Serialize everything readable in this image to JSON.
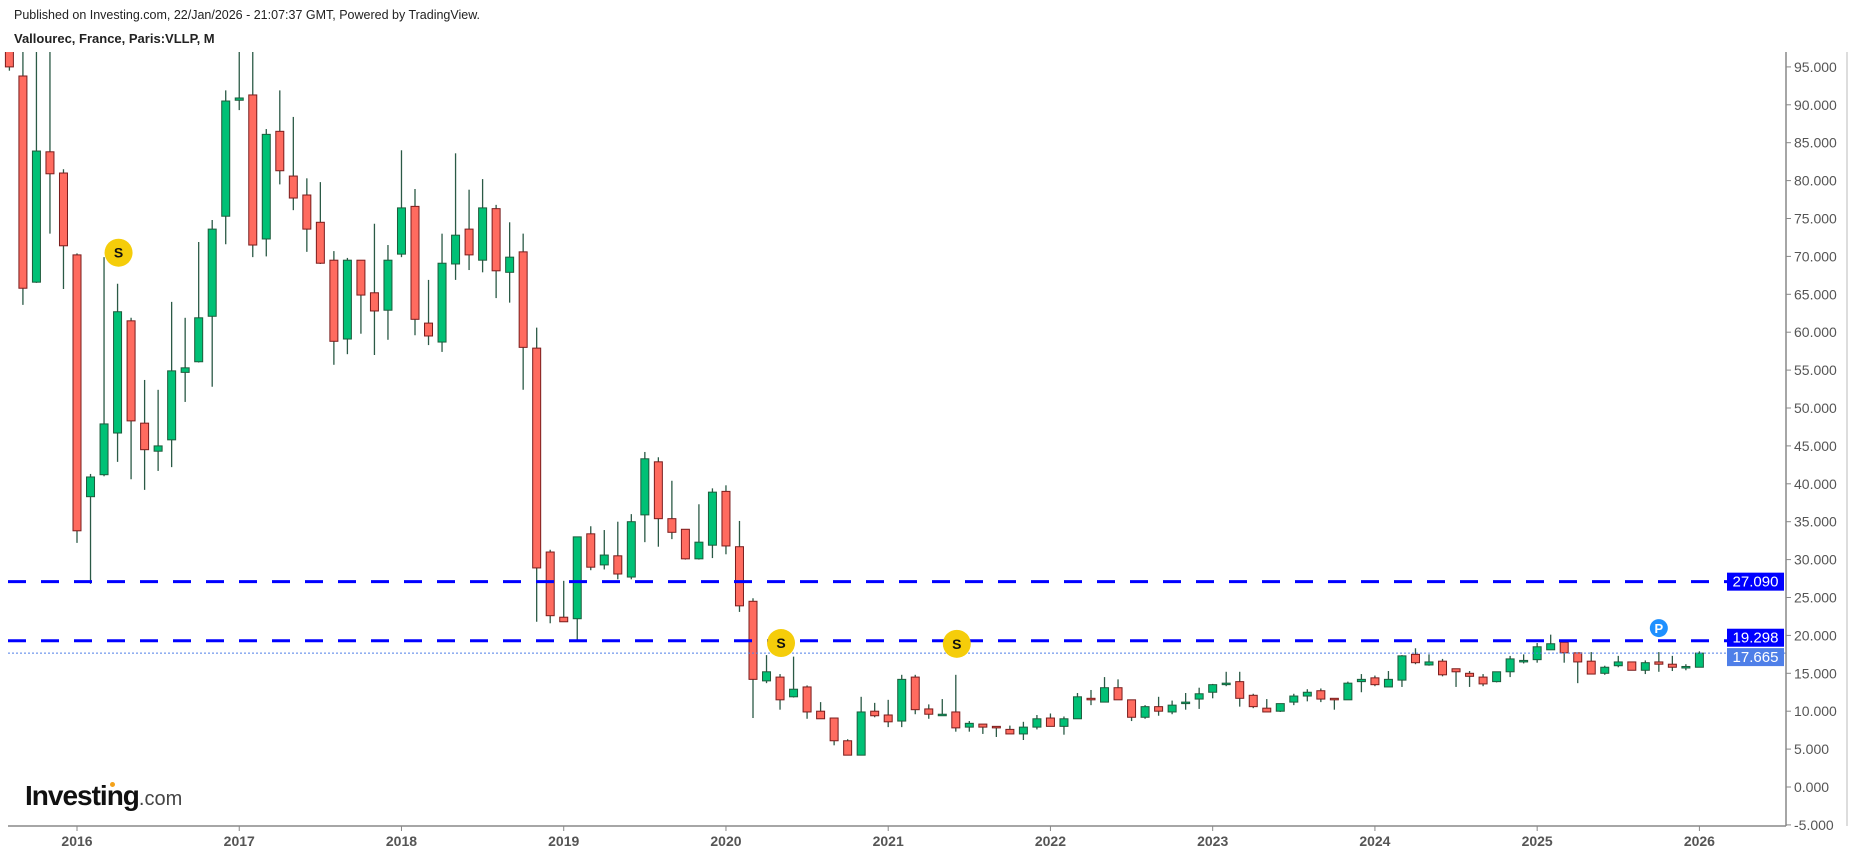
{
  "header": {
    "published": "Published on Investing.com, 22/Jan/2026 - 21:07:37 GMT, Powered by TradingView.",
    "title": "Vallourec, France, Paris:VLLP, M"
  },
  "logo": {
    "main": "Investing",
    "suffix": ".com",
    "accent_color": "#f4a21b"
  },
  "chart_data": {
    "type": "candlestick",
    "interval": "monthly",
    "title": "Vallourec, France, Paris:VLLP, M",
    "ylim": [
      -5,
      95
    ],
    "y_ticks": [
      "95.000",
      "90.000",
      "85.000",
      "80.000",
      "75.000",
      "70.000",
      "65.000",
      "60.000",
      "55.000",
      "50.000",
      "45.000",
      "40.000",
      "35.000",
      "30.000",
      "25.000",
      "20.000",
      "15.000",
      "10.000",
      "5.000",
      "0.000",
      "-5.000"
    ],
    "x_ticks": [
      "2016",
      "2017",
      "2018",
      "2019",
      "2020",
      "2021",
      "2022",
      "2023",
      "2024",
      "2025",
      "2026"
    ],
    "axis_position": "right",
    "grid": false,
    "colors": {
      "up": "#00c176",
      "up_border": "#1d5c3c",
      "down": "#ff6b5f",
      "down_border": "#7a1d1d",
      "wick": "#2b5a46",
      "hline": "#0000ff",
      "last_price": "#4f7fe8"
    },
    "candles_fields": [
      "month",
      "open",
      "high",
      "low",
      "close"
    ],
    "candles": [
      [
        "2015-08",
        100,
        102,
        94.5,
        95
      ],
      [
        "2015-09",
        93.8,
        97,
        63.6,
        65.8
      ],
      [
        "2015-10",
        66.6,
        98,
        66.5,
        83.9
      ],
      [
        "2015-11",
        83.8,
        98,
        73,
        80.9
      ],
      [
        "2015-12",
        81,
        81.5,
        65.7,
        71.4
      ],
      [
        "2016-01",
        70.2,
        70.4,
        32.2,
        33.8
      ],
      [
        "2016-02",
        38.3,
        41.3,
        26.8,
        40.9
      ],
      [
        "2016-03",
        41.2,
        69.9,
        41,
        47.9
      ],
      [
        "2016-04",
        46.7,
        66.4,
        42.9,
        62.7
      ],
      [
        "2016-05",
        61.5,
        61.9,
        40.6,
        48.3
      ],
      [
        "2016-06",
        48,
        53.7,
        39.2,
        44.5
      ],
      [
        "2016-07",
        44.3,
        52.4,
        41.7,
        45
      ],
      [
        "2016-08",
        45.8,
        64,
        42.2,
        54.9
      ],
      [
        "2016-09",
        54.7,
        61.9,
        50.8,
        55.3
      ],
      [
        "2016-10",
        56.1,
        71.9,
        56,
        61.9
      ],
      [
        "2016-11",
        62.1,
        74.8,
        52.8,
        73.6
      ],
      [
        "2016-12",
        75.3,
        91.9,
        71.6,
        90.5
      ],
      [
        "2017-01",
        90.6,
        98,
        89.3,
        90.9
      ],
      [
        "2017-02",
        91.3,
        98,
        69.9,
        71.5
      ],
      [
        "2017-03",
        72.3,
        86.8,
        70,
        86.1
      ],
      [
        "2017-04",
        86.5,
        91.9,
        79.5,
        81.3
      ],
      [
        "2017-05",
        80.6,
        88.4,
        76.1,
        77.7
      ],
      [
        "2017-06",
        78.1,
        80.3,
        70.6,
        73.6
      ],
      [
        "2017-07",
        74.5,
        79.8,
        69,
        69.1
      ],
      [
        "2017-08",
        69.5,
        70.7,
        55.7,
        58.8
      ],
      [
        "2017-09",
        59.1,
        69.8,
        57.1,
        69.5
      ],
      [
        "2017-10",
        69.5,
        69.5,
        59.8,
        64.9
      ],
      [
        "2017-11",
        65.2,
        74.3,
        57,
        62.8
      ],
      [
        "2017-12",
        62.9,
        71.5,
        59,
        69.5
      ],
      [
        "2018-01",
        70.3,
        84,
        69.9,
        76.4
      ],
      [
        "2018-02",
        76.6,
        78.9,
        59.6,
        61.7
      ],
      [
        "2018-03",
        61.2,
        66.9,
        58.3,
        59.5
      ],
      [
        "2018-04",
        58.7,
        73,
        57.4,
        69.1
      ],
      [
        "2018-05",
        69,
        83.6,
        66.9,
        72.8
      ],
      [
        "2018-06",
        73.6,
        78.8,
        68.2,
        70.2
      ],
      [
        "2018-07",
        69.5,
        80.2,
        67.9,
        76.4
      ],
      [
        "2018-08",
        76.3,
        76.8,
        64.5,
        68.1
      ],
      [
        "2018-09",
        67.9,
        74.5,
        63.9,
        69.9
      ],
      [
        "2018-10",
        70.6,
        73,
        52.4,
        58
      ],
      [
        "2018-11",
        57.9,
        60.6,
        21.8,
        28.9
      ],
      [
        "2018-12",
        31,
        31.3,
        21.6,
        22.6
      ],
      [
        "2019-01",
        22.4,
        27.2,
        21.8,
        21.8
      ],
      [
        "2019-02",
        22.2,
        33,
        19.3,
        33
      ],
      [
        "2019-03",
        33.4,
        34.4,
        28.6,
        29
      ],
      [
        "2019-04",
        29.3,
        33.9,
        28.7,
        30.6
      ],
      [
        "2019-05",
        30.5,
        35,
        27.4,
        28.1
      ],
      [
        "2019-06",
        27.7,
        36,
        27.4,
        35
      ],
      [
        "2019-07",
        35.9,
        44.2,
        32.3,
        43.3
      ],
      [
        "2019-08",
        42.9,
        43.5,
        31.7,
        35.4
      ],
      [
        "2019-09",
        35.4,
        40.4,
        32.7,
        33.6
      ],
      [
        "2019-10",
        34,
        34,
        30,
        30.1
      ],
      [
        "2019-11",
        30.1,
        37.3,
        30,
        32.3
      ],
      [
        "2019-12",
        31.9,
        39.4,
        30.2,
        38.9
      ],
      [
        "2020-01",
        39,
        39.8,
        30.7,
        31.8
      ],
      [
        "2020-02",
        31.7,
        35.1,
        23.1,
        23.9
      ],
      [
        "2020-03",
        24.5,
        24.9,
        9.1,
        14.2
      ],
      [
        "2020-04",
        14,
        17.4,
        13.7,
        15.2
      ],
      [
        "2020-05",
        14.5,
        14.9,
        10.2,
        11.5
      ],
      [
        "2020-06",
        11.9,
        17.2,
        11.8,
        12.9
      ],
      [
        "2020-07",
        13.2,
        13.4,
        9,
        9.9
      ],
      [
        "2020-08",
        10,
        11.2,
        9,
        9
      ],
      [
        "2020-09",
        9.1,
        9.1,
        5.5,
        6.1
      ],
      [
        "2020-10",
        6.1,
        6.3,
        4.2,
        4.2
      ],
      [
        "2020-11",
        4.2,
        11.9,
        4.2,
        9.9
      ],
      [
        "2020-12",
        10,
        11.1,
        9.2,
        9.4
      ],
      [
        "2021-01",
        9.5,
        11.5,
        7.9,
        8.6
      ],
      [
        "2021-02",
        8.7,
        14.8,
        7.9,
        14.2
      ],
      [
        "2021-03",
        14.5,
        14.8,
        9.6,
        10.2
      ],
      [
        "2021-04",
        10.3,
        10.9,
        9,
        9.6
      ],
      [
        "2021-05",
        9.5,
        11.6,
        9.5,
        9.6
      ],
      [
        "2021-06",
        9.9,
        14.8,
        7.3,
        7.8
      ],
      [
        "2021-07",
        7.9,
        8.7,
        7.3,
        8.4
      ],
      [
        "2021-08",
        8.3,
        8.3,
        7,
        7.9
      ],
      [
        "2021-09",
        8,
        8,
        6.6,
        7.8
      ],
      [
        "2021-10",
        7.6,
        8.1,
        7,
        7
      ],
      [
        "2021-11",
        7,
        8.6,
        6.2,
        7.9
      ],
      [
        "2021-12",
        7.9,
        9.5,
        7.6,
        9
      ],
      [
        "2022-01",
        9.1,
        9.7,
        8,
        8
      ],
      [
        "2022-02",
        8,
        9.3,
        6.9,
        9
      ],
      [
        "2022-03",
        9,
        12.4,
        9,
        11.9
      ],
      [
        "2022-04",
        11.7,
        12.8,
        10.8,
        11.5
      ],
      [
        "2022-05",
        11.2,
        14.5,
        11.2,
        13.1
      ],
      [
        "2022-06",
        13.1,
        14.2,
        11.5,
        11.5
      ],
      [
        "2022-07",
        11.5,
        11.5,
        8.7,
        9.2
      ],
      [
        "2022-08",
        9.2,
        10.8,
        9,
        10.6
      ],
      [
        "2022-09",
        10.6,
        11.9,
        9.4,
        10
      ],
      [
        "2022-10",
        9.9,
        11.4,
        9.6,
        10.8
      ],
      [
        "2022-11",
        11.1,
        12.4,
        10.2,
        11.2
      ],
      [
        "2022-12",
        11.6,
        13.1,
        10.3,
        12.3
      ],
      [
        "2023-01",
        12.5,
        13.6,
        11.7,
        13.5
      ],
      [
        "2023-02",
        13.6,
        15.2,
        13.3,
        13.7
      ],
      [
        "2023-03",
        13.9,
        15.2,
        10.6,
        11.7
      ],
      [
        "2023-04",
        12.1,
        12.3,
        10.4,
        10.6
      ],
      [
        "2023-05",
        10.4,
        11.6,
        9.9,
        9.9
      ],
      [
        "2023-06",
        10,
        11,
        9.9,
        11
      ],
      [
        "2023-07",
        11.2,
        12.3,
        10.8,
        12
      ],
      [
        "2023-08",
        12,
        12.9,
        11.3,
        12.5
      ],
      [
        "2023-09",
        12.7,
        13,
        11.2,
        11.6
      ],
      [
        "2023-10",
        11.7,
        11.7,
        10.2,
        11.5
      ],
      [
        "2023-11",
        11.5,
        13.9,
        11.5,
        13.7
      ],
      [
        "2023-12",
        13.9,
        14.9,
        12.5,
        14.2
      ],
      [
        "2024-01",
        14.4,
        14.7,
        13.3,
        13.5
      ],
      [
        "2024-02",
        13.2,
        15.3,
        13.2,
        14.2
      ],
      [
        "2024-03",
        14.1,
        17.4,
        13.2,
        17.3
      ],
      [
        "2024-04",
        17.5,
        18.3,
        16.2,
        16.4
      ],
      [
        "2024-05",
        16.1,
        17.5,
        16,
        16.5
      ],
      [
        "2024-06",
        16.6,
        16.9,
        14.6,
        14.8
      ],
      [
        "2024-07",
        15.6,
        15.6,
        13.2,
        15.2
      ],
      [
        "2024-08",
        15,
        15.3,
        13.2,
        14.6
      ],
      [
        "2024-09",
        14.5,
        14.9,
        13.3,
        13.6
      ],
      [
        "2024-10",
        13.9,
        15.2,
        13.8,
        15.2
      ],
      [
        "2024-11",
        15.2,
        17.3,
        14.5,
        16.9
      ],
      [
        "2024-12",
        16.5,
        17.5,
        16.3,
        16.7
      ],
      [
        "2025-01",
        16.8,
        19,
        16.4,
        18.5
      ],
      [
        "2025-02",
        18.1,
        20.1,
        18.1,
        18.9
      ],
      [
        "2025-03",
        19.1,
        19.1,
        16.4,
        17.7
      ],
      [
        "2025-04",
        17.7,
        17.7,
        13.7,
        16.5
      ],
      [
        "2025-05",
        16.6,
        17.8,
        14.9,
        14.9
      ],
      [
        "2025-06",
        15,
        16,
        14.8,
        15.8
      ],
      [
        "2025-07",
        16,
        17.3,
        15.8,
        16.5
      ],
      [
        "2025-08",
        16.5,
        16.5,
        15.4,
        15.4
      ],
      [
        "2025-09",
        15.4,
        16.7,
        14.9,
        16.4
      ],
      [
        "2025-10",
        16.5,
        17.8,
        15.2,
        16.2
      ],
      [
        "2025-11",
        16.2,
        17.3,
        15.3,
        15.8
      ],
      [
        "2025-12",
        15.8,
        16.2,
        15.4,
        15.9
      ],
      [
        "2026-01",
        15.8,
        17.9,
        15.8,
        17.665
      ]
    ],
    "horizontal_lines": [
      {
        "value": 27.09,
        "label": "27.090",
        "style": "dashed"
      },
      {
        "value": 19.298,
        "label": "19.298",
        "style": "dashed"
      }
    ],
    "last_price": {
      "value": 17.665,
      "label": "17.665",
      "style": "dotted"
    },
    "event_markers": [
      {
        "month": "2016-04",
        "label": "S",
        "color": "#f5cd0a"
      },
      {
        "month": "2020-05",
        "label": "S",
        "color": "#f5cd0a"
      },
      {
        "month": "2021-06",
        "label": "S",
        "color": "#f5cd0a"
      },
      {
        "month": "2025-10",
        "label": "P",
        "color": "#1e90ff"
      }
    ]
  }
}
